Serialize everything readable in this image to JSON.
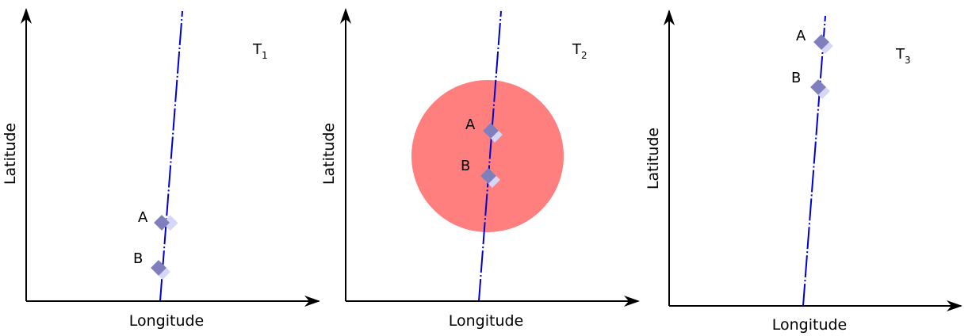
{
  "panels": [
    {
      "id": "t1",
      "time_label": "T",
      "time_subscript": "1",
      "x_axis_label": "Longitude",
      "y_axis_label": "Latitude",
      "has_zone": false,
      "points": [
        {
          "label": "A"
        },
        {
          "label": "B"
        }
      ]
    },
    {
      "id": "t2",
      "time_label": "T",
      "time_subscript": "2",
      "x_axis_label": "Longitude",
      "y_axis_label": "Latitude",
      "has_zone": true,
      "zone_color": "#ff7f7f",
      "points": [
        {
          "label": "A"
        },
        {
          "label": "B"
        }
      ]
    },
    {
      "id": "t3",
      "time_label": "T",
      "time_subscript": "3",
      "x_axis_label": "Longitude",
      "y_axis_label": "Latitude",
      "has_zone": false,
      "points": [
        {
          "label": "A"
        },
        {
          "label": "B"
        }
      ]
    }
  ],
  "colors": {
    "trajectory": "#0000cc",
    "marker_front": "#7f7fbe",
    "marker_back": "#d6d6f8",
    "zone": "#ff7f7f",
    "axis": "#000000"
  }
}
